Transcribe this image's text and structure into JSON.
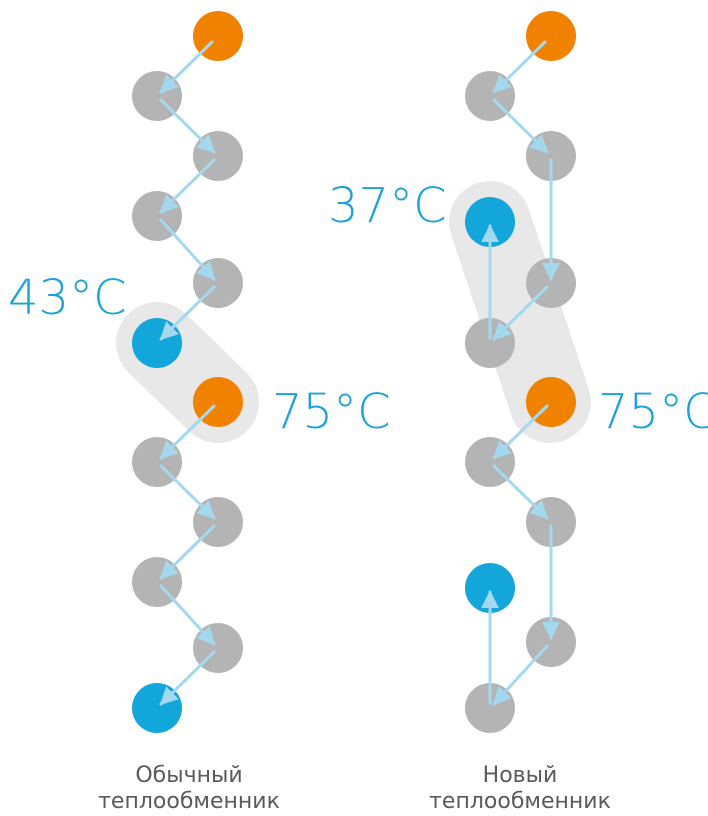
{
  "colors": {
    "hot": "#f08200",
    "cold": "#13a6db",
    "neutral": "#b4b4b4",
    "arrow": "#a3d8ef",
    "highlight": "#e8e8e8",
    "temp_text": "#1ba3d8",
    "caption_text": "#5a5a5a"
  },
  "left_diagram": {
    "caption_line1": "Обычный",
    "caption_line2": "теплообменник",
    "temp_low": "43°C",
    "temp_high": "75°C"
  },
  "right_diagram": {
    "caption_line1": "Новый",
    "caption_line2": "теплообменник",
    "temp_low": "37°C",
    "temp_high": "75°C"
  }
}
